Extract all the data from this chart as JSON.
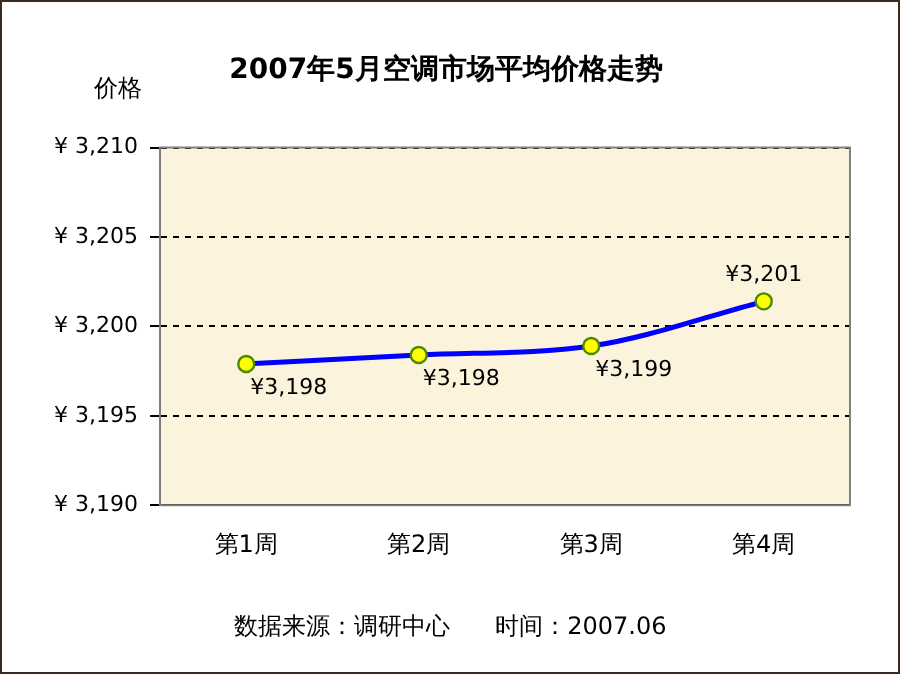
{
  "chart_data": {
    "type": "line",
    "title": "2007年5月空调市场平均价格走势",
    "ylabel": "价格",
    "categories": [
      "第1周",
      "第2周",
      "第3周",
      "第4周"
    ],
    "series": [
      {
        "color": "#0000ff",
        "values": [
          3197.9,
          3198.4,
          3198.9,
          3201.4
        ],
        "value_labels": [
          "¥3,198",
          "¥3,198",
          "¥3,199",
          "¥3,201"
        ]
      }
    ],
    "ylim": [
      3190,
      3210
    ],
    "yticks": [
      {
        "value": 3190,
        "label": "¥ 3,190"
      },
      {
        "value": 3195,
        "label": "¥ 3,195"
      },
      {
        "value": 3200,
        "label": "¥ 3,200"
      },
      {
        "value": 3205,
        "label": "¥ 3,205"
      },
      {
        "value": 3210,
        "label": "¥ 3,210"
      }
    ],
    "grid": "y",
    "marker": "circle",
    "line_style": "solid",
    "legend": false,
    "annotations": [
      "数据来源：调研中心      时间：2007.06"
    ]
  }
}
